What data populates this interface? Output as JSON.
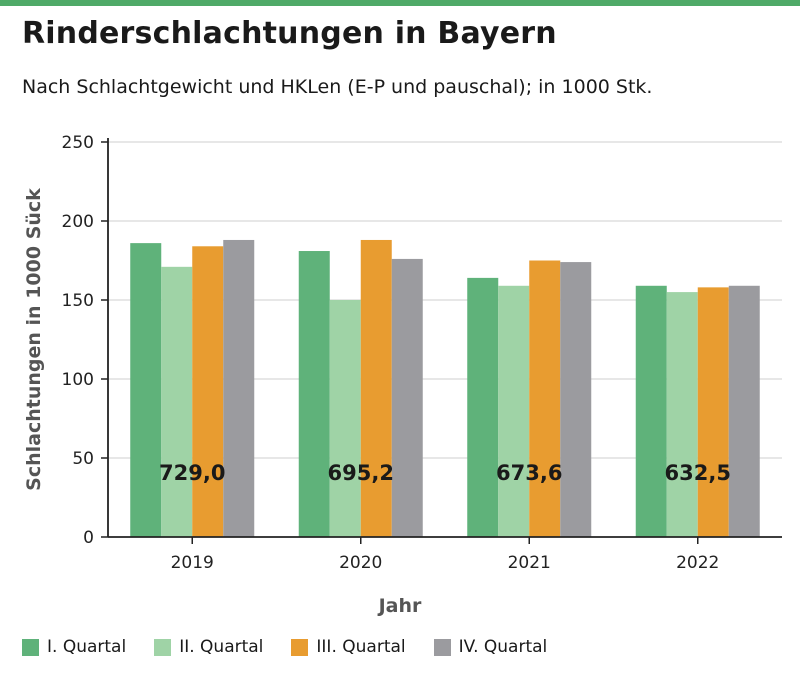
{
  "header": {
    "title": "Rinderschlachtungen in Bayern",
    "subtitle": "Nach Schlachtgewicht und HKLen (E-P und pauschal); in 1000 Stk."
  },
  "colors": {
    "accent_bar": "#4faa68",
    "series": [
      "#5fb27a",
      "#9fd3a6",
      "#e89c30",
      "#9b9b9f"
    ]
  },
  "chart_data": {
    "type": "bar",
    "title": "Rinderschlachtungen in Bayern",
    "subtitle": "Nach Schlachtgewicht und HKLen (E-P und pauschal); in 1000 Stk.",
    "xlabel": "Jahr",
    "ylabel": "Schlachtungen in 1000 Sück",
    "ylim": [
      0,
      250
    ],
    "yticks": [
      0,
      50,
      100,
      150,
      200,
      250
    ],
    "grid": "horizontal",
    "legend_position": "bottom",
    "categories": [
      "2019",
      "2020",
      "2021",
      "2022"
    ],
    "series": [
      {
        "name": "I. Quartal",
        "values": [
          186,
          181,
          164,
          159
        ]
      },
      {
        "name": "II. Quartal",
        "values": [
          171,
          150,
          159,
          155
        ]
      },
      {
        "name": "III. Quartal",
        "values": [
          184,
          188,
          175,
          158
        ]
      },
      {
        "name": "IV. Quartal",
        "values": [
          188,
          176,
          174,
          159
        ]
      }
    ],
    "annotations": [
      "729,0",
      "695,2",
      "673,6",
      "632,5"
    ]
  }
}
